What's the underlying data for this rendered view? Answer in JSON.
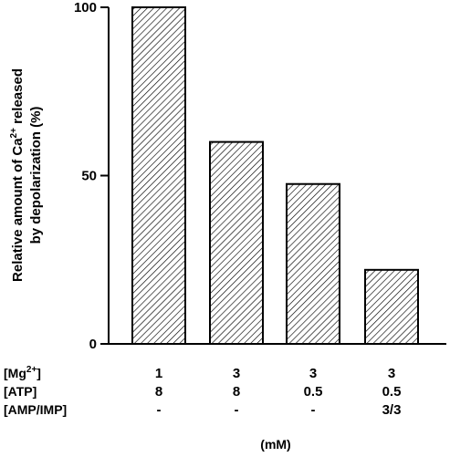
{
  "chart_data": {
    "type": "bar",
    "ylabel_line1": "Relative amount of Ca",
    "ylabel_sup": "2+",
    "ylabel_line1_end": " released",
    "ylabel_line2": "by depolarization (%)",
    "ylim": [
      0,
      100
    ],
    "yticks": [
      "0",
      "50",
      "100"
    ],
    "values": [
      100,
      60,
      47.5,
      22
    ],
    "grid": false,
    "legend": "none",
    "bar_pattern": "diagonal hatch",
    "conditions": [
      {
        "label": "[Mg",
        "sup": "2+",
        "label_end": "]",
        "values": [
          "1",
          "3",
          "3",
          "3"
        ]
      },
      {
        "label": "[ATP]",
        "values": [
          "8",
          "8",
          "0.5",
          "0.5"
        ]
      },
      {
        "label": "[AMP/IMP]",
        "values": [
          "-",
          "-",
          "-",
          "3/3"
        ]
      }
    ],
    "unit": "(mM)"
  }
}
